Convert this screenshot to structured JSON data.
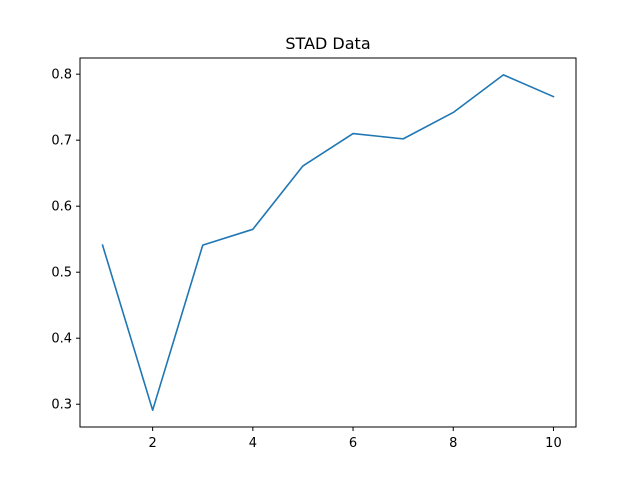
{
  "chart_data": {
    "type": "line",
    "title": "STAD Data",
    "xlabel": "",
    "ylabel": "",
    "x": [
      1,
      2,
      3,
      4,
      5,
      6,
      7,
      8,
      9,
      10
    ],
    "series": [
      {
        "values": [
          0.541,
          0.291,
          0.541,
          0.565,
          0.661,
          0.71,
          0.702,
          0.742,
          0.799,
          0.766
        ],
        "color": "#1f77b4"
      }
    ],
    "xlim": [
      0.55,
      10.45
    ],
    "ylim": [
      0.2655,
      0.8245
    ],
    "xticks": [
      2,
      4,
      6,
      8,
      10
    ],
    "yticks": [
      0.3,
      0.4,
      0.5,
      0.6,
      0.7,
      0.8
    ],
    "xtick_labels": [
      "2",
      "4",
      "6",
      "8",
      "10"
    ],
    "ytick_labels": [
      "0.3",
      "0.4",
      "0.5",
      "0.6",
      "0.7",
      "0.8"
    ],
    "grid": false,
    "legend": "none"
  }
}
